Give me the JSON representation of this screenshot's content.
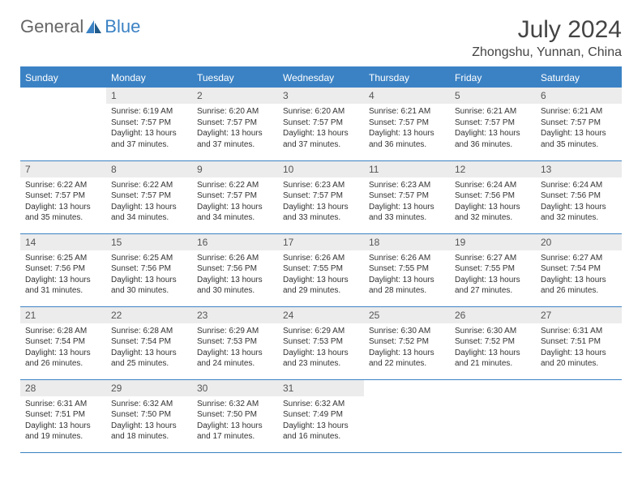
{
  "logo": {
    "part1": "General",
    "part2": "Blue"
  },
  "title": "July 2024",
  "location": "Zhongshu, Yunnan, China",
  "colors": {
    "header_bg": "#3b82c4",
    "header_text": "#ffffff",
    "daynum_bg": "#ececec",
    "border": "#3b82c4",
    "text": "#333333",
    "logo_gray": "#666666",
    "logo_blue": "#3b82c4"
  },
  "weekdays": [
    "Sunday",
    "Monday",
    "Tuesday",
    "Wednesday",
    "Thursday",
    "Friday",
    "Saturday"
  ],
  "start_offset": 1,
  "days": [
    {
      "n": 1,
      "sunrise": "6:19 AM",
      "sunset": "7:57 PM",
      "daylight": "13 hours and 37 minutes."
    },
    {
      "n": 2,
      "sunrise": "6:20 AM",
      "sunset": "7:57 PM",
      "daylight": "13 hours and 37 minutes."
    },
    {
      "n": 3,
      "sunrise": "6:20 AM",
      "sunset": "7:57 PM",
      "daylight": "13 hours and 37 minutes."
    },
    {
      "n": 4,
      "sunrise": "6:21 AM",
      "sunset": "7:57 PM",
      "daylight": "13 hours and 36 minutes."
    },
    {
      "n": 5,
      "sunrise": "6:21 AM",
      "sunset": "7:57 PM",
      "daylight": "13 hours and 36 minutes."
    },
    {
      "n": 6,
      "sunrise": "6:21 AM",
      "sunset": "7:57 PM",
      "daylight": "13 hours and 35 minutes."
    },
    {
      "n": 7,
      "sunrise": "6:22 AM",
      "sunset": "7:57 PM",
      "daylight": "13 hours and 35 minutes."
    },
    {
      "n": 8,
      "sunrise": "6:22 AM",
      "sunset": "7:57 PM",
      "daylight": "13 hours and 34 minutes."
    },
    {
      "n": 9,
      "sunrise": "6:22 AM",
      "sunset": "7:57 PM",
      "daylight": "13 hours and 34 minutes."
    },
    {
      "n": 10,
      "sunrise": "6:23 AM",
      "sunset": "7:57 PM",
      "daylight": "13 hours and 33 minutes."
    },
    {
      "n": 11,
      "sunrise": "6:23 AM",
      "sunset": "7:57 PM",
      "daylight": "13 hours and 33 minutes."
    },
    {
      "n": 12,
      "sunrise": "6:24 AM",
      "sunset": "7:56 PM",
      "daylight": "13 hours and 32 minutes."
    },
    {
      "n": 13,
      "sunrise": "6:24 AM",
      "sunset": "7:56 PM",
      "daylight": "13 hours and 32 minutes."
    },
    {
      "n": 14,
      "sunrise": "6:25 AM",
      "sunset": "7:56 PM",
      "daylight": "13 hours and 31 minutes."
    },
    {
      "n": 15,
      "sunrise": "6:25 AM",
      "sunset": "7:56 PM",
      "daylight": "13 hours and 30 minutes."
    },
    {
      "n": 16,
      "sunrise": "6:26 AM",
      "sunset": "7:56 PM",
      "daylight": "13 hours and 30 minutes."
    },
    {
      "n": 17,
      "sunrise": "6:26 AM",
      "sunset": "7:55 PM",
      "daylight": "13 hours and 29 minutes."
    },
    {
      "n": 18,
      "sunrise": "6:26 AM",
      "sunset": "7:55 PM",
      "daylight": "13 hours and 28 minutes."
    },
    {
      "n": 19,
      "sunrise": "6:27 AM",
      "sunset": "7:55 PM",
      "daylight": "13 hours and 27 minutes."
    },
    {
      "n": 20,
      "sunrise": "6:27 AM",
      "sunset": "7:54 PM",
      "daylight": "13 hours and 26 minutes."
    },
    {
      "n": 21,
      "sunrise": "6:28 AM",
      "sunset": "7:54 PM",
      "daylight": "13 hours and 26 minutes."
    },
    {
      "n": 22,
      "sunrise": "6:28 AM",
      "sunset": "7:54 PM",
      "daylight": "13 hours and 25 minutes."
    },
    {
      "n": 23,
      "sunrise": "6:29 AM",
      "sunset": "7:53 PM",
      "daylight": "13 hours and 24 minutes."
    },
    {
      "n": 24,
      "sunrise": "6:29 AM",
      "sunset": "7:53 PM",
      "daylight": "13 hours and 23 minutes."
    },
    {
      "n": 25,
      "sunrise": "6:30 AM",
      "sunset": "7:52 PM",
      "daylight": "13 hours and 22 minutes."
    },
    {
      "n": 26,
      "sunrise": "6:30 AM",
      "sunset": "7:52 PM",
      "daylight": "13 hours and 21 minutes."
    },
    {
      "n": 27,
      "sunrise": "6:31 AM",
      "sunset": "7:51 PM",
      "daylight": "13 hours and 20 minutes."
    },
    {
      "n": 28,
      "sunrise": "6:31 AM",
      "sunset": "7:51 PM",
      "daylight": "13 hours and 19 minutes."
    },
    {
      "n": 29,
      "sunrise": "6:32 AM",
      "sunset": "7:50 PM",
      "daylight": "13 hours and 18 minutes."
    },
    {
      "n": 30,
      "sunrise": "6:32 AM",
      "sunset": "7:50 PM",
      "daylight": "13 hours and 17 minutes."
    },
    {
      "n": 31,
      "sunrise": "6:32 AM",
      "sunset": "7:49 PM",
      "daylight": "13 hours and 16 minutes."
    }
  ],
  "labels": {
    "sunrise": "Sunrise:",
    "sunset": "Sunset:",
    "daylight": "Daylight:"
  }
}
